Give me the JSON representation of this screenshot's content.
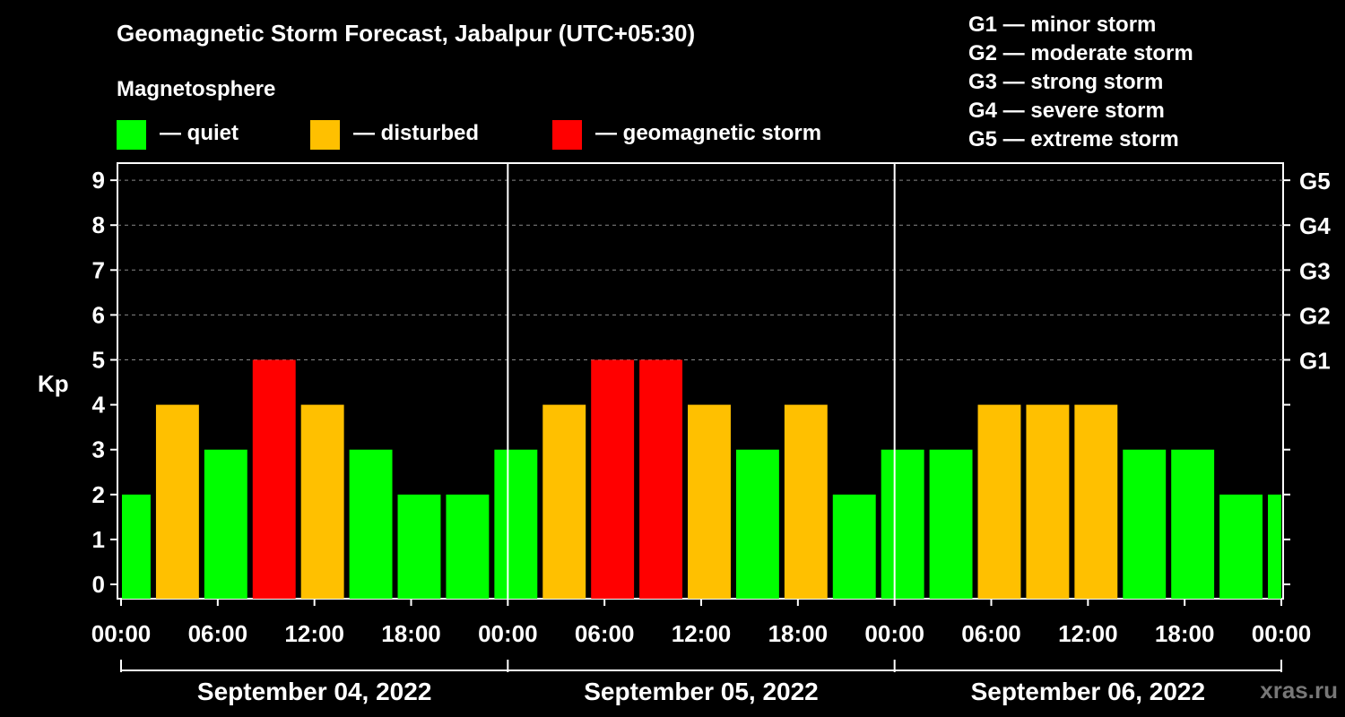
{
  "header": {
    "title": "Geomagnetic Storm Forecast, Jabalpur (UTC+05:30)",
    "subtitle": "Magnetosphere"
  },
  "legend": [
    {
      "label": "— quiet",
      "color": "#00ff00"
    },
    {
      "label": "— disturbed",
      "color": "#ffc000"
    },
    {
      "label": "— geomagnetic storm",
      "color": "#ff0000"
    }
  ],
  "storm_scale": [
    "G1 — minor storm",
    "G2 — moderate storm",
    "G3 — strong storm",
    "G4 — severe storm",
    "G5 — extreme storm"
  ],
  "watermark": "xras.ru",
  "chart_data": {
    "type": "bar",
    "ylabel": "Kp",
    "ylim": [
      0,
      9
    ],
    "yticks": [
      0,
      1,
      2,
      3,
      4,
      5,
      6,
      7,
      8,
      9
    ],
    "right_axis": [
      {
        "kp": 5,
        "label": "G1"
      },
      {
        "kp": 6,
        "label": "G2"
      },
      {
        "kp": 7,
        "label": "G3"
      },
      {
        "kp": 8,
        "label": "G4"
      },
      {
        "kp": 9,
        "label": "G5"
      }
    ],
    "xticks": [
      "00:00",
      "06:00",
      "12:00",
      "18:00",
      "00:00",
      "06:00",
      "12:00",
      "18:00",
      "00:00",
      "06:00",
      "12:00",
      "18:00",
      "00:00"
    ],
    "days": [
      "September 04, 2022",
      "September 05, 2022",
      "September 06, 2022"
    ],
    "grid": true,
    "colors": {
      "quiet": "#00ff00",
      "disturbed": "#ffc000",
      "storm": "#ff0000"
    },
    "kp": [
      2,
      4,
      3,
      5,
      4,
      3,
      2,
      2,
      3,
      4,
      5,
      5,
      4,
      3,
      4,
      2,
      3,
      3,
      4,
      4,
      4,
      3,
      3,
      2,
      2
    ]
  }
}
